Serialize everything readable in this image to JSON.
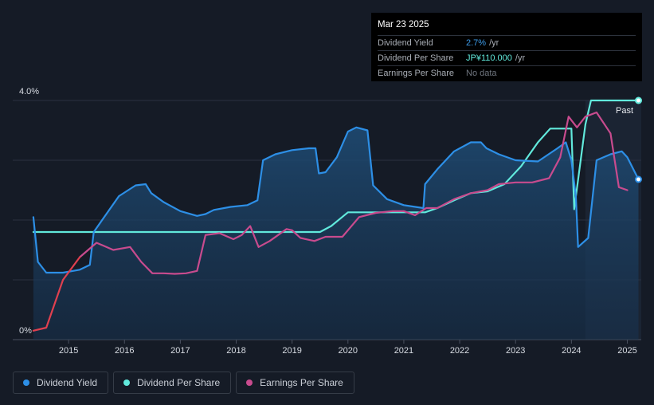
{
  "tooltip": {
    "date": "Mar 23 2025",
    "rows": [
      {
        "label": "Dividend Yield",
        "value": "2.7%",
        "unit": "/yr"
      },
      {
        "label": "Dividend Per Share",
        "value": "JP¥110.000",
        "unit": "/yr"
      },
      {
        "label": "Earnings Per Share",
        "value": "No data",
        "unit": ""
      }
    ]
  },
  "legend": [
    {
      "label": "Dividend Yield",
      "color": "#2d8fe6"
    },
    {
      "label": "Dividend Per Share",
      "color": "#61e9dc"
    },
    {
      "label": "Earnings Per Share",
      "color": "#c84b8e"
    }
  ],
  "chart_data": {
    "type": "line",
    "past_label": "Past",
    "y_tick_labels": [
      "4.0%",
      "0%"
    ],
    "ylim": [
      0,
      4.0
    ],
    "xlim": [
      2014.0,
      2025.25
    ],
    "x_ticks": [
      2015,
      2016,
      2017,
      2018,
      2019,
      2020,
      2021,
      2022,
      2023,
      2024,
      2025
    ],
    "forecast_start": 2024.25,
    "colors": {
      "yield": "#2d8fe6",
      "dps": "#61e9dc",
      "eps": "#c84b8e",
      "eps_early": "#e0404f"
    },
    "series": [
      {
        "name": "Dividend Yield",
        "key": "yield",
        "x": [
          2014.37,
          2014.45,
          2014.6,
          2014.9,
          2015.2,
          2015.38,
          2015.45,
          2015.6,
          2015.9,
          2016.2,
          2016.38,
          2016.48,
          2016.7,
          2017.0,
          2017.3,
          2017.45,
          2017.6,
          2017.9,
          2018.2,
          2018.38,
          2018.48,
          2018.7,
          2019.0,
          2019.3,
          2019.42,
          2019.48,
          2019.6,
          2019.8,
          2020.0,
          2020.15,
          2020.35,
          2020.45,
          2020.7,
          2021.0,
          2021.35,
          2021.38,
          2021.6,
          2021.9,
          2022.2,
          2022.38,
          2022.48,
          2022.7,
          2023.0,
          2023.4,
          2023.75,
          2023.9,
          2024.0,
          2024.08,
          2024.12,
          2024.3,
          2024.45,
          2024.7,
          2024.9,
          2025.0,
          2025.2
        ],
        "y": [
          2.05,
          1.3,
          1.12,
          1.12,
          1.17,
          1.25,
          1.8,
          2.0,
          2.4,
          2.58,
          2.6,
          2.45,
          2.3,
          2.15,
          2.07,
          2.1,
          2.17,
          2.22,
          2.25,
          2.33,
          3.0,
          3.1,
          3.17,
          3.2,
          3.2,
          2.78,
          2.8,
          3.05,
          3.48,
          3.55,
          3.5,
          2.58,
          2.35,
          2.25,
          2.2,
          2.6,
          2.85,
          3.15,
          3.3,
          3.3,
          3.2,
          3.1,
          3.0,
          2.98,
          3.2,
          3.3,
          3.0,
          2.4,
          1.55,
          1.7,
          3.0,
          3.1,
          3.15,
          3.05,
          2.68
        ]
      },
      {
        "name": "Dividend Per Share",
        "key": "dps",
        "x": [
          2014.37,
          2019.5,
          2019.7,
          2020.0,
          2021.38,
          2021.6,
          2021.9,
          2022.2,
          2022.5,
          2022.8,
          2023.1,
          2023.4,
          2023.62,
          2023.75,
          2024.0,
          2024.05,
          2024.25,
          2024.35,
          2025.2
        ],
        "y": [
          1.8,
          1.8,
          1.9,
          2.13,
          2.13,
          2.2,
          2.33,
          2.45,
          2.48,
          2.6,
          2.9,
          3.3,
          3.53,
          3.53,
          3.53,
          2.18,
          3.6,
          4.0,
          4.0
        ]
      },
      {
        "name": "Earnings Per Share",
        "key": "eps",
        "x": [
          2014.37,
          2014.6,
          2014.9,
          2015.2,
          2015.5,
          2015.8,
          2016.1,
          2016.3,
          2016.5,
          2016.7,
          2016.9,
          2017.1,
          2017.3,
          2017.45,
          2017.7,
          2017.95,
          2018.1,
          2018.25,
          2018.4,
          2018.6,
          2018.9,
          2019.0,
          2019.15,
          2019.4,
          2019.6,
          2019.9,
          2020.2,
          2020.5,
          2020.8,
          2021.0,
          2021.2,
          2021.4,
          2021.6,
          2021.9,
          2022.2,
          2022.5,
          2022.7,
          2023.0,
          2023.3,
          2023.6,
          2023.8,
          2023.95,
          2024.1,
          2024.25,
          2024.45,
          2024.7,
          2024.85,
          2025.0
        ],
        "y": [
          0.15,
          0.2,
          1.0,
          1.38,
          1.62,
          1.5,
          1.55,
          1.3,
          1.11,
          1.11,
          1.1,
          1.11,
          1.15,
          1.75,
          1.78,
          1.68,
          1.75,
          1.9,
          1.55,
          1.65,
          1.85,
          1.83,
          1.7,
          1.65,
          1.72,
          1.72,
          2.05,
          2.12,
          2.15,
          2.15,
          2.08,
          2.2,
          2.2,
          2.35,
          2.45,
          2.5,
          2.6,
          2.63,
          2.63,
          2.7,
          3.05,
          3.73,
          3.55,
          3.73,
          3.8,
          3.45,
          2.55,
          2.5
        ]
      }
    ]
  }
}
